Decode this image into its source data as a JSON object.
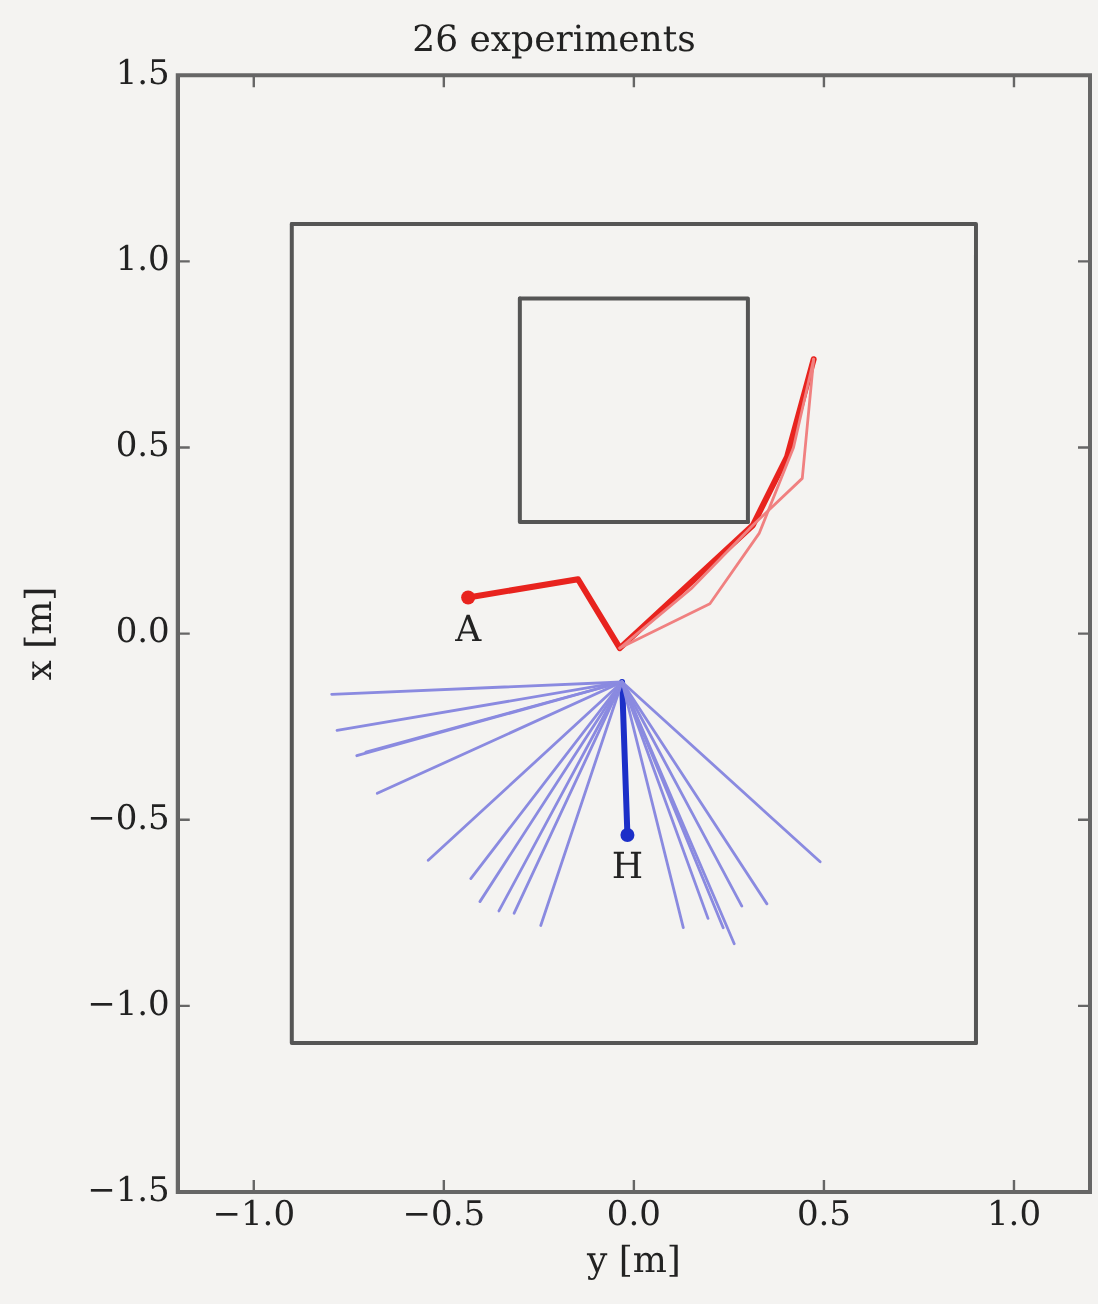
{
  "chart_data": {
    "type": "line",
    "title": "26 experiments",
    "xlabel": "y [m]",
    "ylabel": "x [m]",
    "xlim": [
      -1.2,
      1.2
    ],
    "ylim": [
      -1.5,
      1.5
    ],
    "xticks": [
      {
        "value": -1,
        "label": "−1.0"
      },
      {
        "value": -0.5,
        "label": "−0.5"
      },
      {
        "value": 0,
        "label": "0.0"
      },
      {
        "value": 0.5,
        "label": "0.5"
      },
      {
        "value": 1,
        "label": "1.0"
      }
    ],
    "yticks": [
      {
        "value": -1.5,
        "label": "−1.5"
      },
      {
        "value": -1,
        "label": "−1.0"
      },
      {
        "value": -0.5,
        "label": "−0.5"
      },
      {
        "value": 0,
        "label": "0.0"
      },
      {
        "value": 0.5,
        "label": "0.5"
      },
      {
        "value": 1,
        "label": "1.0"
      },
      {
        "value": 1.5,
        "label": "1.5"
      }
    ],
    "grid": false,
    "legend": false,
    "marker": "none",
    "line_style": "solid",
    "series": [
      {
        "color": "#555555",
        "x": [
          -0.9,
          0.9,
          0.9
        ],
        "values": [
          1.1,
          1.1,
          -1.1
        ]
      },
      {
        "color": "#555555",
        "x": [
          0.9,
          -0.9,
          -0.9
        ],
        "values": [
          -1.1,
          -1.1,
          1.1
        ]
      },
      {
        "color": "#555555",
        "x": [
          -0.3,
          0.3,
          0.3
        ],
        "values": [
          0.9,
          0.9,
          0.3
        ]
      },
      {
        "color": "#555555",
        "x": [
          0.3,
          -0.3,
          -0.3
        ],
        "values": [
          0.3,
          0.3,
          0.9
        ]
      },
      {
        "color": "#8a8ae0",
        "x": [
          -0.031,
          -0.795
        ],
        "values": [
          -0.13,
          -0.163
        ]
      },
      {
        "color": "#8a8ae0",
        "x": [
          -0.031,
          -0.781
        ],
        "values": [
          -0.13,
          -0.26
        ]
      },
      {
        "color": "#8a8ae0",
        "x": [
          -0.031,
          -0.729
        ],
        "values": [
          -0.13,
          -0.328
        ]
      },
      {
        "color": "#8a8ae0",
        "x": [
          -0.031,
          -0.705
        ],
        "values": [
          -0.13,
          -0.318
        ]
      },
      {
        "color": "#8a8ae0",
        "x": [
          -0.031,
          -0.675
        ],
        "values": [
          -0.13,
          -0.429
        ]
      },
      {
        "color": "#8a8ae0",
        "x": [
          -0.031,
          -0.541
        ],
        "values": [
          -0.13,
          -0.609
        ]
      },
      {
        "color": "#8a8ae0",
        "x": [
          -0.031,
          -0.429
        ],
        "values": [
          -0.13,
          -0.658
        ]
      },
      {
        "color": "#8a8ae0",
        "x": [
          -0.031,
          -0.405
        ],
        "values": [
          -0.13,
          -0.72
        ]
      },
      {
        "color": "#8a8ae0",
        "x": [
          -0.031,
          -0.355
        ],
        "values": [
          -0.13,
          -0.745
        ]
      },
      {
        "color": "#8a8ae0",
        "x": [
          -0.031,
          -0.315
        ],
        "values": [
          -0.13,
          -0.751
        ]
      },
      {
        "color": "#8a8ae0",
        "x": [
          -0.031,
          -0.245
        ],
        "values": [
          -0.13,
          -0.784
        ]
      },
      {
        "color": "#8a8ae0",
        "x": [
          -0.031,
          0.13
        ],
        "values": [
          -0.13,
          -0.79
        ]
      },
      {
        "color": "#8a8ae0",
        "x": [
          -0.031,
          0.195
        ],
        "values": [
          -0.13,
          -0.765
        ]
      },
      {
        "color": "#8a8ae0",
        "x": [
          -0.031,
          0.235
        ],
        "values": [
          -0.13,
          -0.79
        ]
      },
      {
        "color": "#8a8ae0",
        "x": [
          -0.031,
          0.264
        ],
        "values": [
          -0.13,
          -0.833
        ]
      },
      {
        "color": "#8a8ae0",
        "x": [
          -0.031,
          0.284
        ],
        "values": [
          -0.13,
          -0.732
        ]
      },
      {
        "color": "#8a8ae0",
        "x": [
          -0.031,
          0.35
        ],
        "values": [
          -0.13,
          -0.726
        ]
      },
      {
        "color": "#8a8ae0",
        "x": [
          -0.031,
          0.49
        ],
        "values": [
          -0.13,
          -0.613
        ]
      },
      {
        "color": "#f08080",
        "x": [
          -0.037,
          0.15,
          0.313,
          0.443,
          0.473
        ],
        "values": [
          -0.039,
          0.12,
          0.291,
          0.417,
          0.737
        ]
      },
      {
        "color": "#f08080",
        "x": [
          -0.037,
          0.2,
          0.33,
          0.42,
          0.473
        ],
        "values": [
          -0.039,
          0.08,
          0.27,
          0.5,
          0.737
        ]
      },
      {
        "color": "#e8231e",
        "x": [
          -0.436,
          -0.147,
          -0.037,
          0.313,
          0.403,
          0.473
        ],
        "values": [
          0.097,
          0.146,
          -0.039,
          0.291,
          0.475,
          0.737
        ]
      },
      {
        "color": "#1c2fc8",
        "x": [
          -0.031,
          -0.017
        ],
        "values": [
          -0.13,
          -0.541
        ]
      },
      {
        "type": "scatter",
        "marker": "circle",
        "color": "#e8231e",
        "x": [
          -0.436
        ],
        "values": [
          0.097
        ]
      },
      {
        "type": "scatter",
        "marker": "circle",
        "color": "#1c2fc8",
        "x": [
          -0.017
        ],
        "values": [
          -0.541
        ]
      }
    ],
    "annotations": [
      {
        "text": "A",
        "x": -0.436,
        "y": 0.097
      },
      {
        "text": "H",
        "x": -0.017,
        "y": -0.541
      }
    ]
  }
}
